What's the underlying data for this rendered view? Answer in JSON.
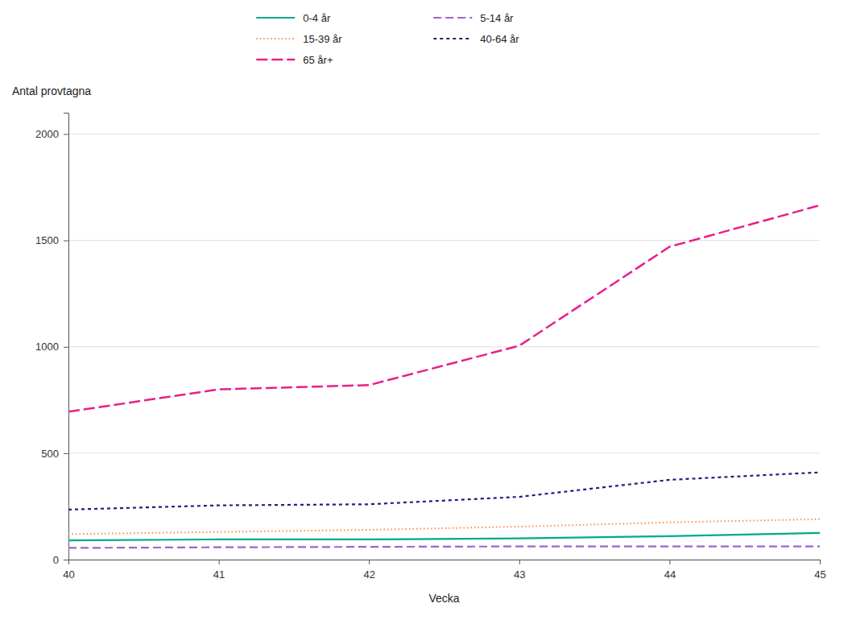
{
  "chart_data": {
    "type": "line",
    "xlabel": "Vecka",
    "ylabel": "Antal provtagna",
    "x": [
      40,
      41,
      42,
      43,
      44,
      45
    ],
    "series": [
      {
        "name": "0-4 år",
        "color": "#00AA88",
        "line_style": "solid",
        "values": [
          90,
          95,
          95,
          100,
          110,
          125
        ]
      },
      {
        "name": "5-14 år",
        "color": "#9966CC",
        "line_style": "dashed",
        "values": [
          55,
          58,
          60,
          62,
          62,
          62
        ]
      },
      {
        "name": "15-39 år",
        "color": "#FF8C42",
        "line_style": "dotted",
        "values": [
          120,
          130,
          140,
          155,
          175,
          190
        ]
      },
      {
        "name": "40-64 år",
        "color": "#1A237E",
        "line_style": "short-dashed",
        "values": [
          235,
          255,
          260,
          295,
          375,
          410
        ]
      },
      {
        "name": "65 år+",
        "color": "#E91E8C",
        "line_style": "long-dashed",
        "values": [
          695,
          800,
          820,
          1005,
          1470,
          1665
        ]
      }
    ],
    "xlim": [
      40,
      45
    ],
    "ylim": [
      0,
      2100
    ],
    "xticks": [
      40,
      41,
      42,
      43,
      44,
      45
    ],
    "yticks": [
      0,
      500,
      1000,
      1500,
      2000
    ],
    "grid": true,
    "legend": "top"
  }
}
